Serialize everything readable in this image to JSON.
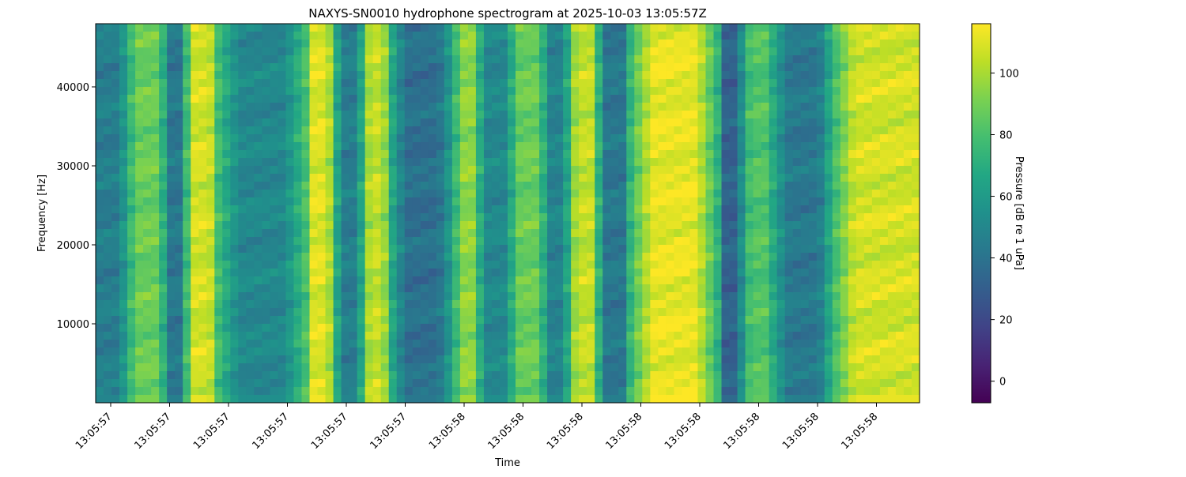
{
  "chart_data": {
    "type": "heatmap",
    "title": "NAXYS-SN0010 hydrophone spectrogram at 2025-10-03 13:05:57Z",
    "xlabel": "Time",
    "ylabel": "Frequency [Hz]",
    "x_tick_labels": [
      "13:05:57",
      "13:05:57",
      "13:05:57",
      "13:05:57",
      "13:05:57",
      "13:05:57",
      "13:05:58",
      "13:05:58",
      "13:05:58",
      "13:05:58",
      "13:05:58",
      "13:05:58",
      "13:05:58",
      "13:05:58"
    ],
    "y_ticks": [
      10000,
      20000,
      30000,
      40000
    ],
    "y_tick_labels": [
      "10000",
      "20000",
      "30000",
      "40000"
    ],
    "ylim": [
      0,
      48000
    ],
    "colormap": "viridis",
    "colorbar": {
      "label": "Pressure [dB re 1 uPa]",
      "range": [
        -7,
        116
      ],
      "ticks": [
        0,
        20,
        40,
        60,
        80,
        100
      ],
      "tick_labels": [
        "0",
        "20",
        "40",
        "60",
        "80",
        "100"
      ]
    },
    "segments": [
      {
        "start": 0.0,
        "end": 0.038,
        "level_db": 45
      },
      {
        "start": 0.038,
        "end": 0.085,
        "level_db": 88
      },
      {
        "start": 0.085,
        "end": 0.11,
        "level_db": 42
      },
      {
        "start": 0.11,
        "end": 0.148,
        "level_db": 108
      },
      {
        "start": 0.148,
        "end": 0.255,
        "level_db": 50
      },
      {
        "start": 0.255,
        "end": 0.29,
        "level_db": 110
      },
      {
        "start": 0.29,
        "end": 0.325,
        "level_db": 45
      },
      {
        "start": 0.325,
        "end": 0.357,
        "level_db": 105
      },
      {
        "start": 0.357,
        "end": 0.435,
        "level_db": 38
      },
      {
        "start": 0.435,
        "end": 0.465,
        "level_db": 95
      },
      {
        "start": 0.465,
        "end": 0.505,
        "level_db": 50
      },
      {
        "start": 0.505,
        "end": 0.545,
        "level_db": 88
      },
      {
        "start": 0.545,
        "end": 0.575,
        "level_db": 48
      },
      {
        "start": 0.575,
        "end": 0.61,
        "level_db": 105
      },
      {
        "start": 0.61,
        "end": 0.65,
        "level_db": 42
      },
      {
        "start": 0.65,
        "end": 0.755,
        "level_db": 112
      },
      {
        "start": 0.755,
        "end": 0.785,
        "level_db": 32
      },
      {
        "start": 0.785,
        "end": 0.825,
        "level_db": 82
      },
      {
        "start": 0.825,
        "end": 0.895,
        "level_db": 42
      },
      {
        "start": 0.895,
        "end": 1.0,
        "level_db": 108
      }
    ]
  }
}
